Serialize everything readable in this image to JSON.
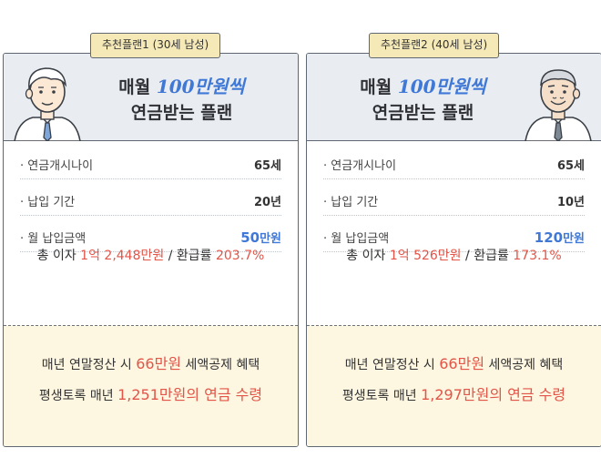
{
  "plans": [
    {
      "tab_label": "추천플랜1 (30세 남성)",
      "headline_prefix": "매월 ",
      "headline_highlight": "100만원씩",
      "headline_line2": "연금받는 플랜",
      "rows": [
        {
          "label": "· 연금개시나이",
          "value": "65세"
        },
        {
          "label": "· 납입 기간",
          "value": "20년"
        },
        {
          "label": "· 월 납입금액",
          "value_num": "50",
          "value_unit": "만원"
        }
      ],
      "summary": {
        "prefix": "총 이자 ",
        "interest": "1억 2,448만원",
        "mid": " / 환급률 ",
        "rate": "203.7%"
      },
      "footer": {
        "l1_a": "매년 연말정산 시 ",
        "l1_red": "66만원",
        "l1_b": " 세액공제 혜택",
        "l2_a": "평생토록 매년 ",
        "l2_red": "1,251만원의 연금 수령"
      }
    },
    {
      "tab_label": "추천플랜2 (40세 남성)",
      "headline_prefix": "매월 ",
      "headline_highlight": "100만원씩",
      "headline_line2": "연금받는 플랜",
      "rows": [
        {
          "label": "· 연금개시나이",
          "value": "65세"
        },
        {
          "label": "· 납입 기간",
          "value": "10년"
        },
        {
          "label": "· 월 납입금액",
          "value_num": "120",
          "value_unit": "만원"
        }
      ],
      "summary": {
        "prefix": "총 이자 ",
        "interest": "1억 526만원",
        "mid": " / 환급률 ",
        "rate": "173.1%"
      },
      "footer": {
        "l1_a": "매년 연말정산 시 ",
        "l1_red": "66만원",
        "l1_b": " 세액공제 혜택",
        "l2_a": "평생토록 매년 ",
        "l2_red": "1,297만원의 연금 수령"
      }
    }
  ],
  "colors": {
    "accent_blue": "#3f78d6",
    "accent_red": "#e25548",
    "header_bg": "#e9edf2",
    "footer_bg": "#fdf6e1",
    "tab_bg": "#f6e9b8"
  },
  "icons": [
    "young-man-avatar-icon",
    "older-man-avatar-icon"
  ]
}
